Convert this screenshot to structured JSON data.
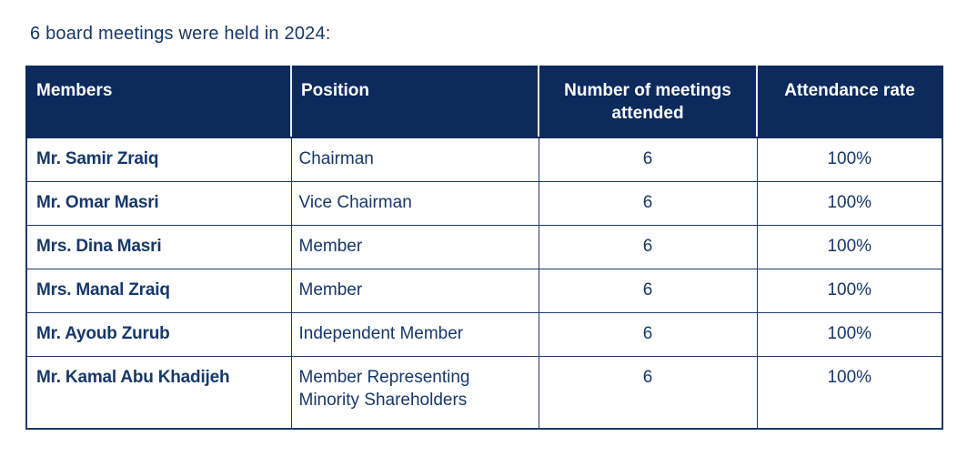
{
  "page": {
    "title": "6 board meetings were held in 2024:"
  },
  "colors": {
    "header_background": "#0d2a5c",
    "border": "#1e3a69",
    "body_text": "#17386a",
    "header_text": "#ffffff",
    "page_background": "#ffffff"
  },
  "table": {
    "columns": [
      {
        "label": "Members",
        "align": "left"
      },
      {
        "label": "Position",
        "align": "left"
      },
      {
        "label": "Number of meetings attended",
        "align": "center"
      },
      {
        "label": "Attendance rate",
        "align": "center"
      }
    ],
    "rows": [
      {
        "member": "Mr. Samir Zraiq",
        "position": "Chairman",
        "meetings": "6",
        "rate": "100%"
      },
      {
        "member": "Mr. Omar Masri",
        "position": "Vice Chairman",
        "meetings": "6",
        "rate": "100%"
      },
      {
        "member": "Mrs. Dina Masri",
        "position": "Member",
        "meetings": "6",
        "rate": "100%"
      },
      {
        "member": "Mrs. Manal Zraiq",
        "position": "Member",
        "meetings": "6",
        "rate": "100%"
      },
      {
        "member": "Mr. Ayoub Zurub",
        "position": "Independent Member",
        "meetings": "6",
        "rate": "100%"
      },
      {
        "member": "Mr. Kamal Abu Khadijeh",
        "position": "Member Representing Minority Shareholders",
        "meetings": "6",
        "rate": "100%"
      }
    ]
  }
}
